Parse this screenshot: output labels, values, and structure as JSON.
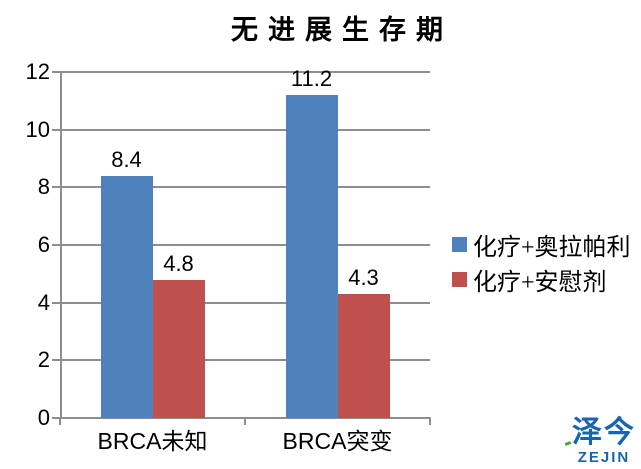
{
  "title": "无进展生存期",
  "chart_data": {
    "type": "bar",
    "title": "无进展生存期",
    "categories": [
      "BRCA未知",
      "BRCA突变"
    ],
    "series": [
      {
        "name": "化疗+奥拉帕利",
        "color": "#4F81BD",
        "values": [
          8.4,
          11.2
        ]
      },
      {
        "name": "化疗+安慰剂",
        "color": "#C0504D",
        "values": [
          4.8,
          4.3
        ]
      }
    ],
    "data_labels": [
      [
        "8.4",
        "11.2"
      ],
      [
        "4.8",
        "4.3"
      ]
    ],
    "xlabel": "",
    "ylabel": "",
    "ylim": [
      0,
      12
    ],
    "ytick_step": 2,
    "yticks": [
      "0",
      "2",
      "4",
      "6",
      "8",
      "10",
      "12"
    ],
    "grid": true,
    "legend_position": "right"
  },
  "colors": {
    "grid": "#8e8e8e",
    "axis": "#8e8e8e",
    "text": "#000000",
    "background": "#ffffff"
  },
  "watermark": {
    "cn": "泽今",
    "en": "ZEJIN",
    "color": "#1766AD",
    "accent_color": "#43A832"
  }
}
